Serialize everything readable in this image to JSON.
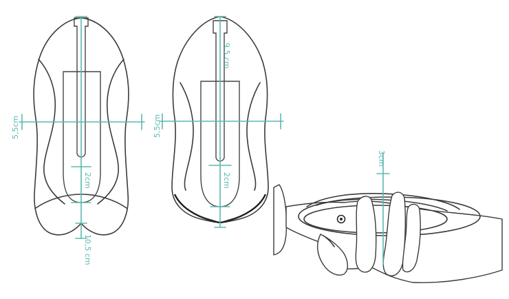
{
  "colors": {
    "dimension": "#5ab8b0",
    "outline": "#3a3a3a"
  },
  "left_drawing": {
    "width_label": "5,5cm",
    "depth_label": "2cm",
    "length_label": "10,5 cm"
  },
  "middle_drawing": {
    "width_label": "5,5cm",
    "slot_label": "9,5 cm",
    "depth_label": "2cm"
  },
  "right_drawing": {
    "height_label": "3cm"
  }
}
